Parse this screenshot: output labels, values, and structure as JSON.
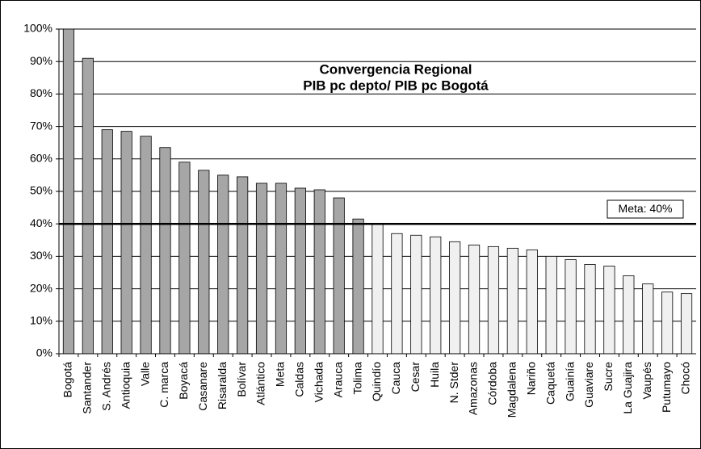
{
  "chart_data": {
    "type": "bar",
    "title": [
      "Convergencia Regional",
      "PIB pc depto/ PIB pc Bogotá"
    ],
    "categories": [
      "Bogotá",
      "Santander",
      "S. Andrés",
      "Antioquia",
      "Valle",
      "C. marca",
      "Boyacá",
      "Casanare",
      "Risaralda",
      "Bolívar",
      "Atlántico",
      "Meta",
      "Caldas",
      "Vichada",
      "Arauca",
      "Tolima",
      "Quindío",
      "Cauca",
      "Cesar",
      "Huila",
      "N. Stder",
      "Amazonas",
      "Córdoba",
      "Magdalena",
      "Nariño",
      "Caquetá",
      "Guainía",
      "Guaviare",
      "Sucre",
      "La Guajira",
      "Vaupés",
      "Putumayo",
      "Chocó"
    ],
    "values": [
      100,
      91,
      69,
      68.5,
      67,
      63.5,
      59,
      56.5,
      55,
      54.5,
      52.5,
      52.5,
      51,
      50.5,
      48,
      41.5,
      40,
      37,
      36.5,
      36,
      34.5,
      33.5,
      33,
      32.5,
      32,
      30,
      29,
      27.5,
      27,
      24,
      21.5,
      19,
      18.5
    ],
    "colors": [
      "#a6a6a6",
      "#a6a6a6",
      "#a6a6a6",
      "#a6a6a6",
      "#a6a6a6",
      "#a6a6a6",
      "#a6a6a6",
      "#a6a6a6",
      "#a6a6a6",
      "#a6a6a6",
      "#a6a6a6",
      "#a6a6a6",
      "#a6a6a6",
      "#a6a6a6",
      "#a6a6a6",
      "#a6a6a6",
      "#f0f0f0",
      "#f0f0f0",
      "#f0f0f0",
      "#f0f0f0",
      "#f0f0f0",
      "#f0f0f0",
      "#f0f0f0",
      "#f0f0f0",
      "#f0f0f0",
      "#f0f0f0",
      "#f0f0f0",
      "#f0f0f0",
      "#f0f0f0",
      "#f0f0f0",
      "#f0f0f0",
      "#f0f0f0",
      "#f0f0f0"
    ],
    "target": 40,
    "target_label": "Meta: 40%",
    "ylim": [
      0,
      100
    ],
    "yticks": [
      {
        "value": 0,
        "label": "0%"
      },
      {
        "value": 10,
        "label": "10%"
      },
      {
        "value": 20,
        "label": "20%"
      },
      {
        "value": 30,
        "label": "30%"
      },
      {
        "value": 40,
        "label": "40%"
      },
      {
        "value": 50,
        "label": "50%"
      },
      {
        "value": 60,
        "label": "60%"
      },
      {
        "value": 70,
        "label": "70%"
      },
      {
        "value": 80,
        "label": "80%"
      },
      {
        "value": 90,
        "label": "90%"
      },
      {
        "value": 100,
        "label": "100%"
      }
    ],
    "grid": true
  }
}
